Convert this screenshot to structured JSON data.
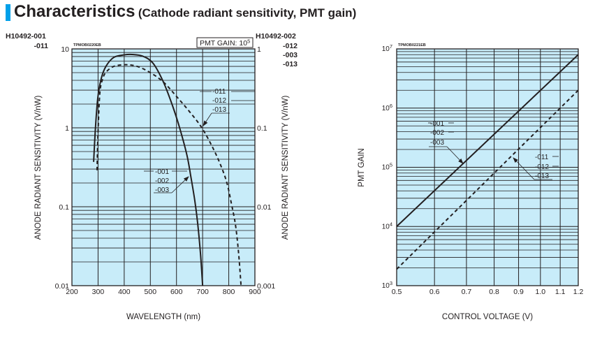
{
  "header": {
    "title": "Characteristics",
    "subtitle": "(Cathode radiant sensitivity, PMT gain)",
    "accent_color": "#00a0e9"
  },
  "chart_data": [
    {
      "type": "line",
      "code": "TPMOB0220EB",
      "left_models": [
        "H10492-001",
        "-011"
      ],
      "right_models": [
        "H10492-002",
        "-012",
        "-003",
        "-013"
      ],
      "annotation_box": {
        "text": "PMT GAIN: 10",
        "sup": "5"
      },
      "xlabel": "WAVELENGTH (nm)",
      "ylabel": "ANODE RADIANT SENSITIVITY (V/nW)",
      "ylabel_right": "ANODE RADIANT SENSITIVITY (V/nW)",
      "xlim": [
        200,
        900
      ],
      "ylim": [
        0.01,
        10
      ],
      "ylim_right": [
        0.001,
        1
      ],
      "yscale": "log",
      "grid": true,
      "x_ticks": [
        "200",
        "300",
        "400",
        "500",
        "600",
        "700",
        "800",
        "900"
      ],
      "y_ticks": [
        "10",
        "1",
        "0.1",
        "0.01"
      ],
      "y_ticks_right": [
        "1",
        "0.1",
        "0.01",
        "0.001"
      ],
      "series": [
        {
          "name": "-001 / -002 / -003",
          "labels": [
            "-001",
            "-002",
            "-003"
          ],
          "style": "solid",
          "x": [
            283,
            290,
            299,
            312,
            330,
            360,
            400,
            430,
            470,
            510,
            550,
            585,
            612,
            640,
            655,
            670,
            681,
            692,
            700
          ],
          "y": [
            0.37,
            1.0,
            2.4,
            4.2,
            6.0,
            7.8,
            8.4,
            8.5,
            8.1,
            6.6,
            3.8,
            1.9,
            1.0,
            0.45,
            0.24,
            0.12,
            0.062,
            0.025,
            0.01
          ]
        },
        {
          "name": "-011 / -012 / -013",
          "labels": [
            "-011",
            "-012",
            "-013"
          ],
          "style": "dashed",
          "x": [
            296,
            300,
            307,
            318,
            331,
            360,
            406,
            450,
            500,
            550,
            600,
            650,
            697,
            740,
            770,
            793,
            810,
            826,
            838,
            847
          ],
          "y": [
            0.29,
            0.9,
            2.8,
            4.2,
            5.1,
            6.0,
            6.3,
            6.0,
            5.0,
            3.8,
            2.5,
            1.6,
            1.0,
            0.55,
            0.33,
            0.2,
            0.11,
            0.058,
            0.025,
            0.01
          ]
        }
      ]
    },
    {
      "type": "line",
      "code": "TPMOB0221EB",
      "xlabel": "CONTROL VOLTAGE (V)",
      "ylabel": "PMT GAIN",
      "xlim": [
        0.5,
        1.2
      ],
      "ylim": [
        1000,
        10000000
      ],
      "xscale": "log",
      "yscale": "log",
      "grid": true,
      "x_ticks": [
        "0.5",
        "0.6",
        "0.7",
        "0.8",
        "0.9",
        "1.0",
        "1.1",
        "1.2"
      ],
      "y_ticks": [
        {
          "base": "10",
          "exp": "7"
        },
        {
          "base": "10",
          "exp": "6"
        },
        {
          "base": "10",
          "exp": "5"
        },
        {
          "base": "10",
          "exp": "4"
        },
        {
          "base": "10",
          "exp": "3"
        }
      ],
      "series": [
        {
          "name": "-001 / -002 / -003",
          "labels": [
            "-001",
            "-002",
            "-003"
          ],
          "style": "solid",
          "x": [
            0.5,
            1.2
          ],
          "y": [
            10000,
            8000000
          ]
        },
        {
          "name": "-011 / -012 / -013",
          "labels": [
            "-011",
            "-012",
            "-013"
          ],
          "style": "dashed",
          "x": [
            0.5,
            1.2
          ],
          "y": [
            1900,
            2000000
          ]
        }
      ]
    }
  ]
}
